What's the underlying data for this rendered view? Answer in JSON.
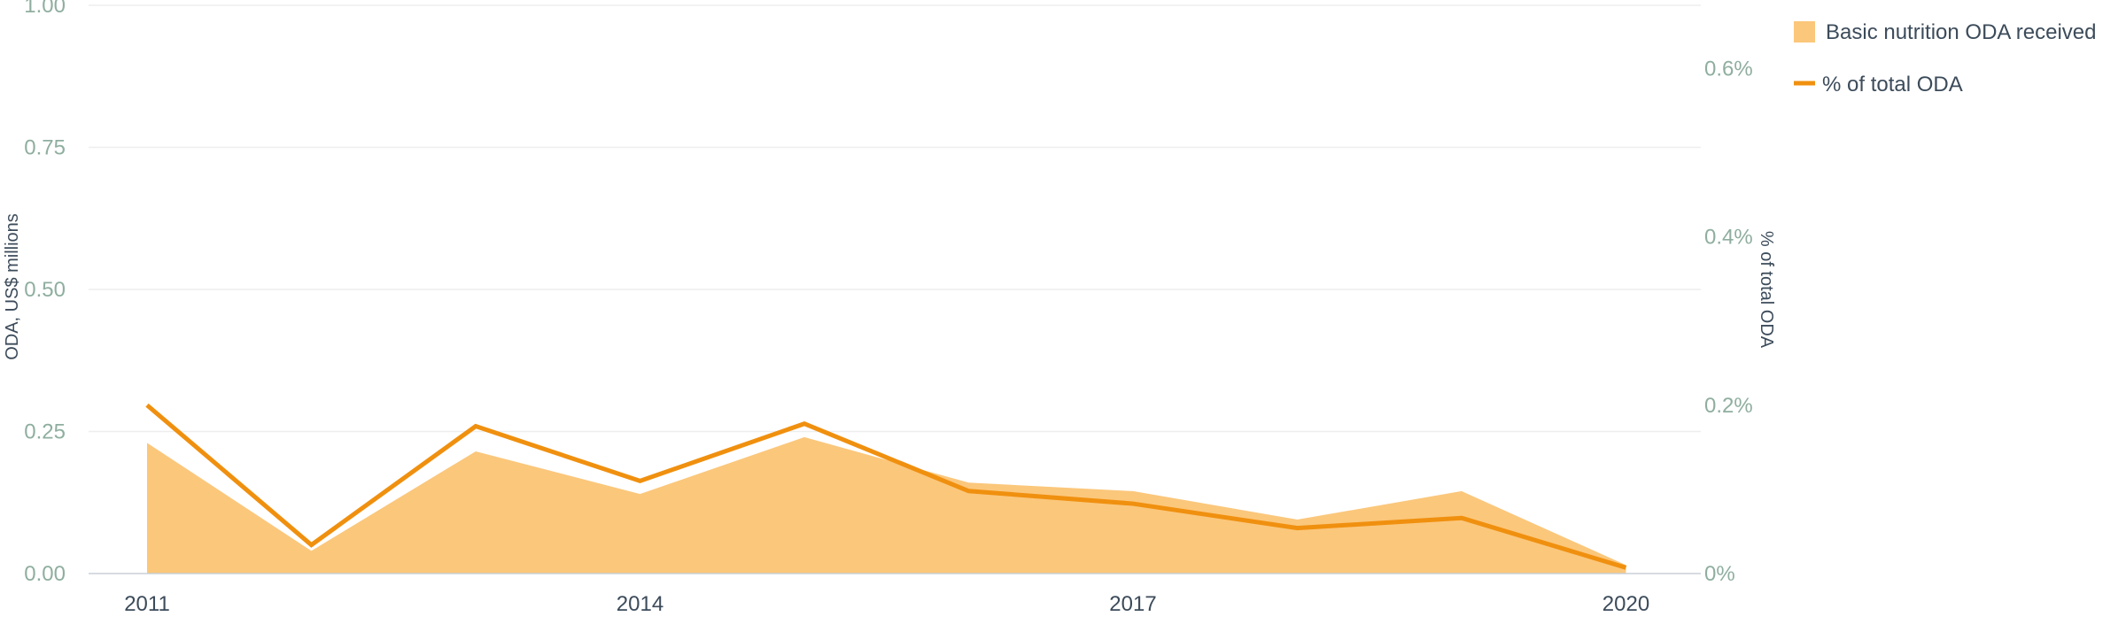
{
  "chart_data": {
    "type": "area+line",
    "title": "",
    "x": [
      2011,
      2012,
      2013,
      2014,
      2015,
      2016,
      2017,
      2018,
      2019,
      2020
    ],
    "x_tick_labels": [
      "2011",
      "2014",
      "2017",
      "2020"
    ],
    "y_left": {
      "label": "ODA, US$ millions",
      "range": [
        0,
        1
      ],
      "ticks": [
        "0.00",
        "0.25",
        "0.50",
        "0.75",
        "1.00"
      ]
    },
    "y_right": {
      "label": "% of total ODA",
      "range": [
        0,
        0.675
      ],
      "ticks": [
        "0%",
        "0.2%",
        "0.4%",
        "0.6%"
      ]
    },
    "series": [
      {
        "name": "Basic nutrition ODA received",
        "type": "area",
        "axis": "left",
        "color": "#fbc77b",
        "values": [
          0.23,
          0.04,
          0.215,
          0.14,
          0.24,
          0.16,
          0.145,
          0.095,
          0.145,
          0.015
        ]
      },
      {
        "name": "% of total ODA",
        "type": "line",
        "axis": "right",
        "color": "#f0900f",
        "values": [
          0.2,
          0.034,
          0.175,
          0.11,
          0.178,
          0.098,
          0.083,
          0.054,
          0.066,
          0.007
        ]
      }
    ],
    "grid": true,
    "legend_position": "top-right"
  }
}
